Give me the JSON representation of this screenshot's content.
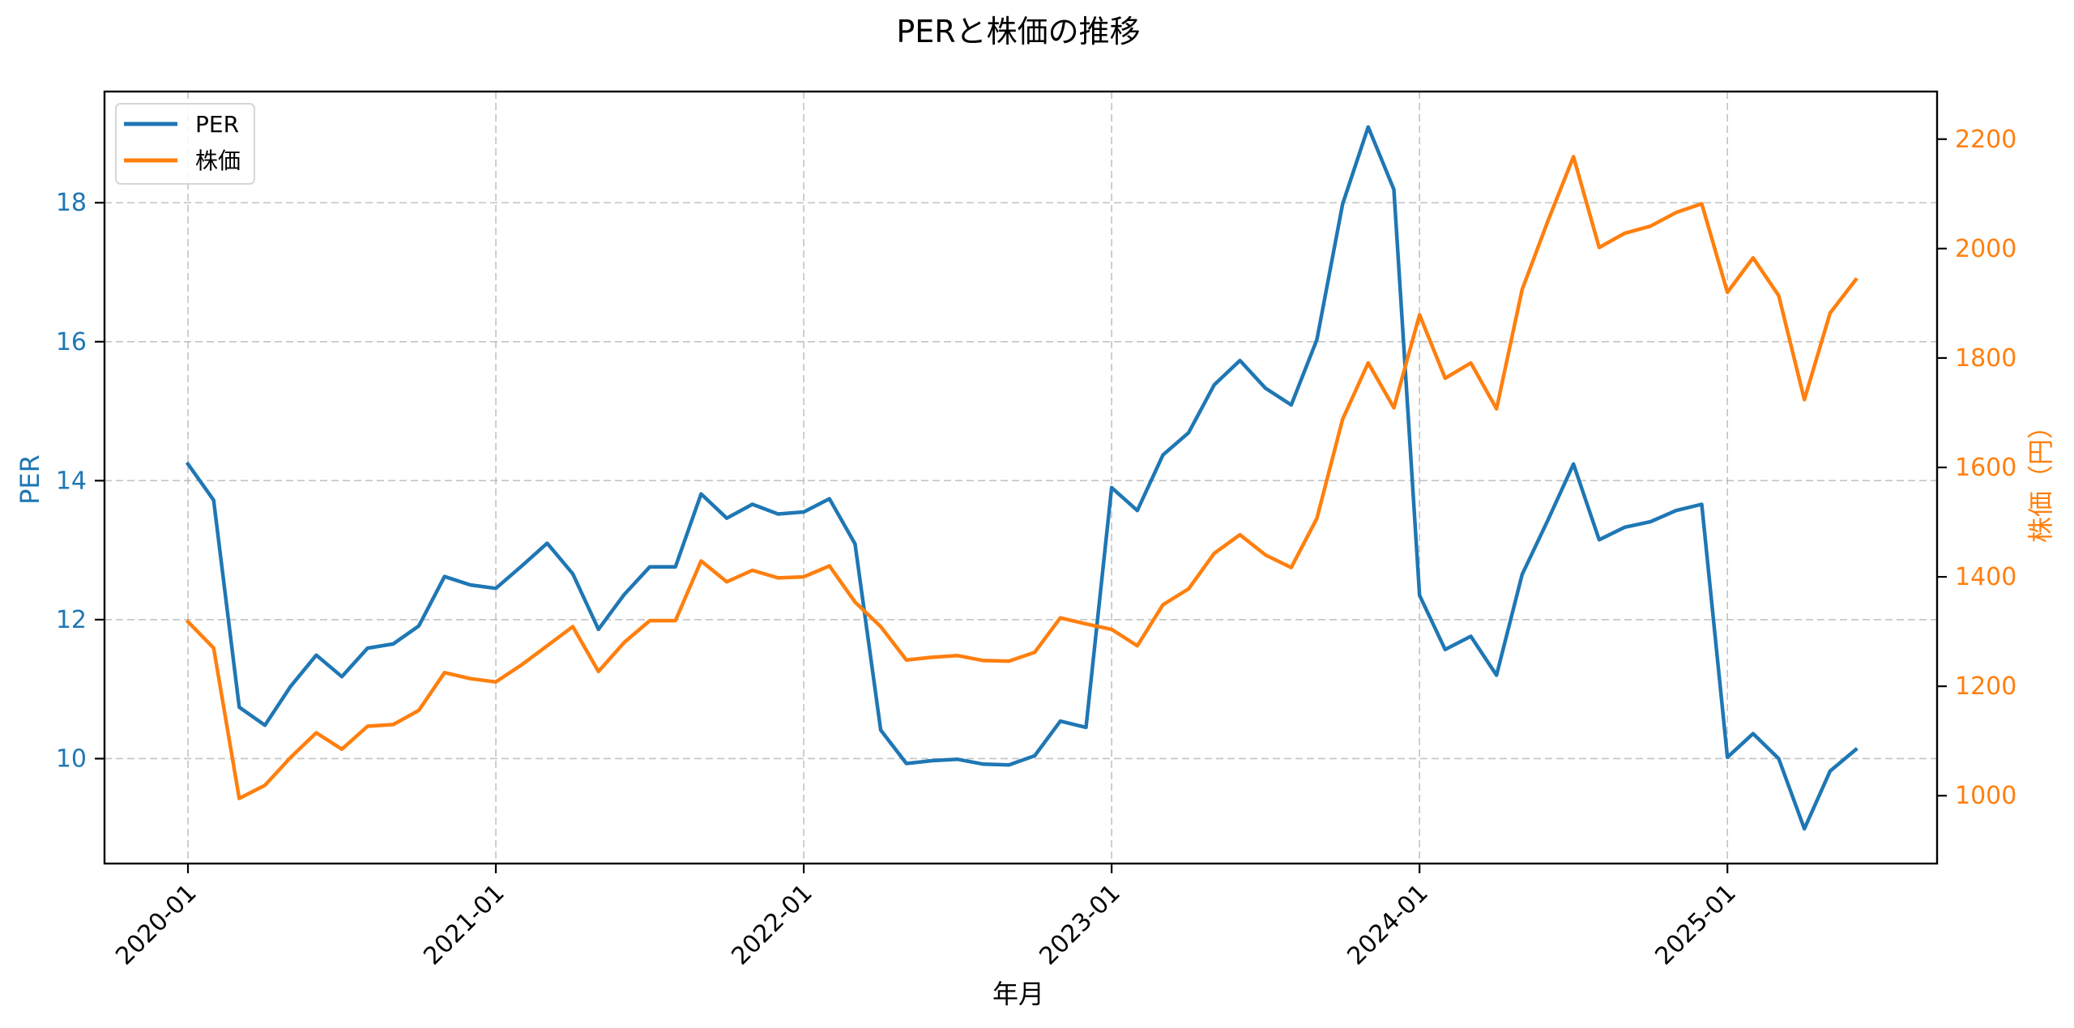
{
  "chart_data": {
    "type": "line",
    "title": "PERと株価の推移",
    "xlabel": "年月",
    "ylabel_left": "PER",
    "ylabel_right": "株価（円）",
    "x": [
      "2020-01",
      "2020-02",
      "2020-03",
      "2020-04",
      "2020-05",
      "2020-06",
      "2020-07",
      "2020-08",
      "2020-09",
      "2020-10",
      "2020-11",
      "2020-12",
      "2021-01",
      "2021-02",
      "2021-03",
      "2021-04",
      "2021-05",
      "2021-06",
      "2021-07",
      "2021-08",
      "2021-09",
      "2021-10",
      "2021-11",
      "2021-12",
      "2022-01",
      "2022-02",
      "2022-03",
      "2022-04",
      "2022-05",
      "2022-06",
      "2022-07",
      "2022-08",
      "2022-09",
      "2022-10",
      "2022-11",
      "2022-12",
      "2023-01",
      "2023-02",
      "2023-03",
      "2023-04",
      "2023-05",
      "2023-06",
      "2023-07",
      "2023-08",
      "2023-09",
      "2023-10",
      "2023-11",
      "2023-12",
      "2024-01",
      "2024-02",
      "2024-03",
      "2024-04",
      "2024-05",
      "2024-06",
      "2024-07",
      "2024-08",
      "2024-09",
      "2024-10",
      "2024-11",
      "2024-12",
      "2025-01",
      "2025-02",
      "2025-03",
      "2025-04",
      "2025-05",
      "2025-06"
    ],
    "x_ticks": [
      "2020-01",
      "2021-01",
      "2022-01",
      "2023-01",
      "2024-01",
      "2025-01"
    ],
    "x_tick_rotation": 45,
    "series": [
      {
        "name": "PER",
        "axis": "left",
        "color": "#1f77b4",
        "values": [
          14.24,
          13.72,
          10.74,
          10.48,
          11.04,
          11.49,
          11.18,
          11.59,
          11.65,
          11.91,
          12.62,
          12.5,
          12.45,
          12.77,
          13.1,
          12.66,
          11.86,
          12.36,
          12.76,
          12.76,
          13.81,
          13.46,
          13.66,
          13.52,
          13.55,
          13.74,
          13.09,
          10.41,
          9.93,
          9.97,
          9.99,
          9.92,
          9.91,
          10.04,
          10.54,
          10.45,
          13.9,
          13.57,
          14.37,
          14.69,
          15.38,
          15.73,
          15.33,
          15.09,
          16.03,
          17.98,
          19.09,
          18.19,
          12.35,
          11.57,
          11.76,
          11.2,
          12.65,
          13.43,
          14.24,
          13.15,
          13.33,
          13.41,
          13.57,
          13.66,
          10.02,
          10.36,
          10.0,
          8.99,
          9.82,
          10.13
        ]
      },
      {
        "name": "株価",
        "axis": "right",
        "color": "#ff7f0e",
        "values": [
          1318,
          1270,
          995,
          1019,
          1070,
          1115,
          1085,
          1127,
          1130,
          1156,
          1225,
          1214,
          1208,
          1239,
          1274,
          1309,
          1227,
          1280,
          1320,
          1320,
          1429,
          1391,
          1412,
          1398,
          1400,
          1420,
          1354,
          1309,
          1248,
          1253,
          1256,
          1247,
          1246,
          1262,
          1325,
          1314,
          1304,
          1274,
          1349,
          1378,
          1443,
          1477,
          1440,
          1417,
          1507,
          1688,
          1791,
          1709,
          1879,
          1763,
          1791,
          1707,
          1925,
          2050,
          2168,
          2002,
          2028,
          2041,
          2066,
          2082,
          1920,
          1983,
          1914,
          1724,
          1882,
          1943
        ]
      }
    ],
    "y_left": {
      "ticks": [
        10,
        12,
        14,
        16,
        18
      ],
      "lim": [
        8.49,
        19.6
      ],
      "color": "#1f77b4"
    },
    "y_right": {
      "ticks": [
        1000,
        1200,
        1400,
        1600,
        1800,
        2000,
        2200
      ],
      "lim": [
        876,
        2287
      ],
      "color": "#ff7f0e"
    },
    "grid": true,
    "legend": {
      "position": "upper left",
      "entries": [
        "PER",
        "株価"
      ]
    }
  },
  "labels": {
    "title": "PERと株価の推移",
    "xlabel": "年月",
    "ylabel_left": "PER",
    "ylabel_right": "株価（円）",
    "legend_per": "PER",
    "legend_price": "株価"
  }
}
